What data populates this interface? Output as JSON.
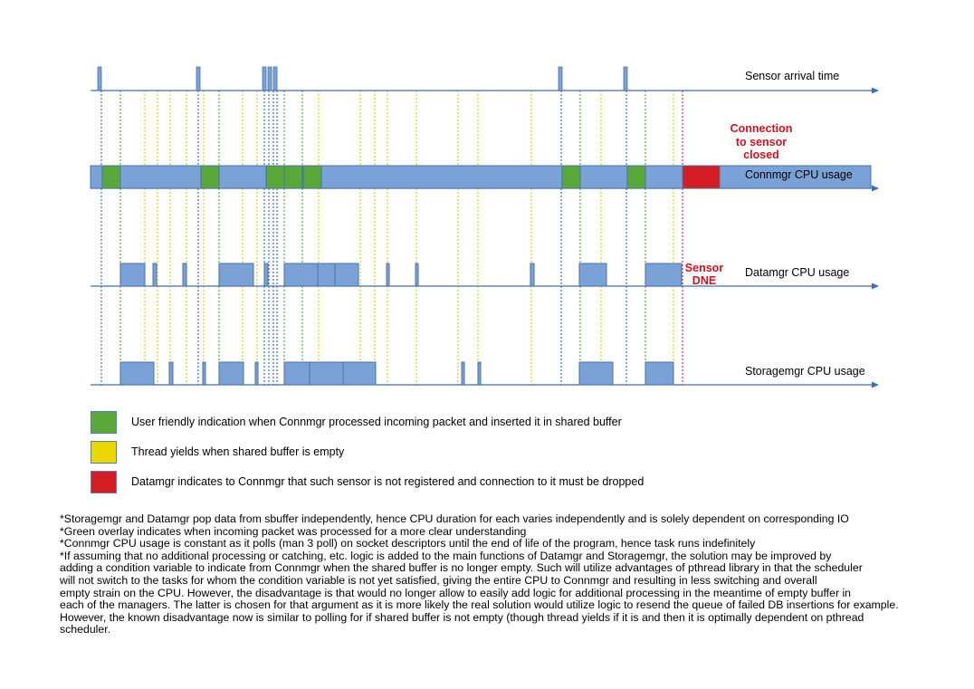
{
  "tracks": {
    "sensor_arrival": "Sensor arrival time",
    "connmgr": "Connmgr CPU usage",
    "datamgr": "Datamgr CPU usage",
    "storagemgr": "Storagemgr CPU usage"
  },
  "annotations": {
    "connection_closed": [
      "Connection",
      "to sensor",
      "closed"
    ],
    "sensor_dne": [
      "Sensor",
      "DNE"
    ]
  },
  "colors": {
    "bar_blue": "#7aa2d6",
    "bar_border": "#4a72a8",
    "green": "#5aa83a",
    "yellow": "#e8d800",
    "red": "#d41c24",
    "axis": "#3b6fb6",
    "marker_blue": "#2a5fb8",
    "marker_green": "#4aa030",
    "marker_yellow": "#e0c800",
    "marker_red": "#d02030"
  },
  "legend": [
    {
      "color": "#5aa83a",
      "text": "User friendly indication when Connmgr processed incoming packet and inserted it in shared buffer"
    },
    {
      "color": "#e8d800",
      "text": "Thread yields when shared buffer is empty"
    },
    {
      "color": "#d41c24",
      "text": "Datamgr indicates to Connmgr that such sensor is not registered and connection to it must be dropped"
    }
  ],
  "notes": [
    "*Storagemgr and Datamgr pop data from sbuffer independently, hence CPU duration for each varies independently and is solely dependent on corresponding IO",
    "*Green overlay indicates when incoming packet was processed for a more clear understanding",
    "*Connmgr CPU usage is constant as it polls (man 3 poll) on socket descriptors until the end of life of the program, hence task runs indefinitely",
    "*If assuming that no additional processing or catching, etc. logic is added to the main functions of Datamgr and Storagemgr, the solution may be improved by",
    "adding a condition variable to indicate from Connmgr when the shared buffer is no longer empty. Such will utilize advantages of pthread library in that the scheduler",
    "will not switch to the tasks for whom the condition variable is not yet satisfied, giving the entire CPU to Connmgr and resulting in less switching and overall",
    "empty strain on the CPU. However, the disadvantage is that would no longer allow to easily add logic for additional processing in the meantime of empty buffer in",
    "each of the managers. The latter is chosen for that argument as it is more likely the real solution would utilize logic to resend the queue of failed DB insertions for example.",
    "However, the known disadvantage now is similar to polling for if shared buffer is not empty (though thread yields if it is and then it is optimally dependent on pthread",
    "scheduler."
  ]
}
